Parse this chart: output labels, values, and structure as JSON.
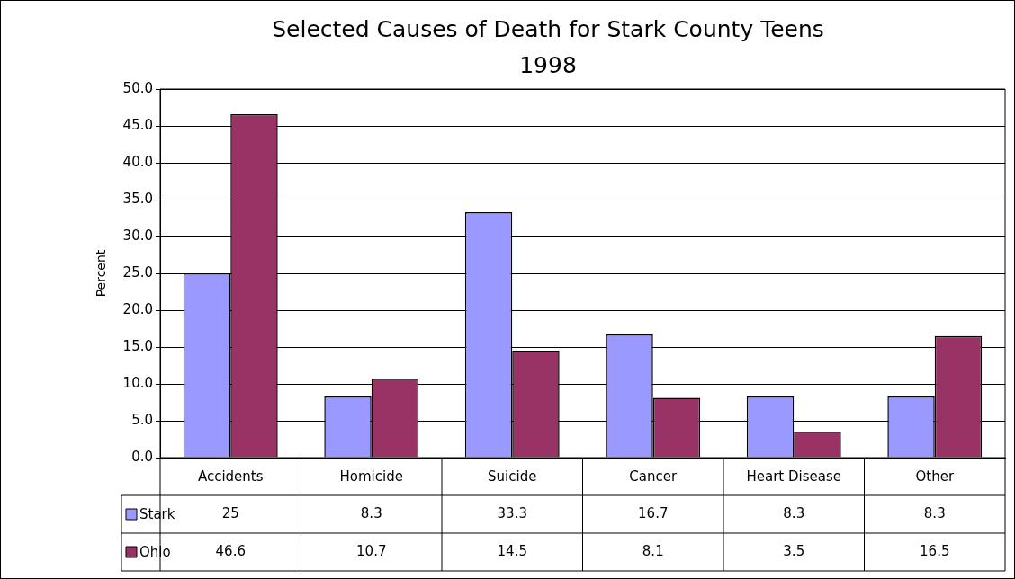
{
  "chart_data": {
    "type": "bar",
    "title": "Selected Causes of Death for Stark County Teens",
    "subtitle": "1998",
    "ylabel": "Percent",
    "categories": [
      "Accidents",
      "Homicide",
      "Suicide",
      "Cancer",
      "Heart Disease",
      "Other"
    ],
    "series": [
      {
        "name": "Stark",
        "color": "#9999ff",
        "values": [
          25,
          8.3,
          33.3,
          16.7,
          8.3,
          8.3
        ]
      },
      {
        "name": "Ohio",
        "color": "#993366",
        "values": [
          46.6,
          10.7,
          14.5,
          8.1,
          3.5,
          16.5
        ]
      }
    ],
    "ylim": [
      0,
      50
    ],
    "yticks": [
      {
        "value": 0,
        "label": "0.0"
      },
      {
        "value": 5,
        "label": "5.0"
      },
      {
        "value": 10,
        "label": "10.0"
      },
      {
        "value": 15,
        "label": "15.0"
      },
      {
        "value": 20,
        "label": "20.0"
      },
      {
        "value": 25,
        "label": "25.0"
      },
      {
        "value": 30,
        "label": "30.0"
      },
      {
        "value": 35,
        "label": "35.0"
      },
      {
        "value": 40,
        "label": "40.0"
      },
      {
        "value": 45,
        "label": "45.0"
      },
      {
        "value": 50,
        "label": "50.0"
      }
    ],
    "grid": "y",
    "legend": "bottom",
    "data_labels": true
  }
}
